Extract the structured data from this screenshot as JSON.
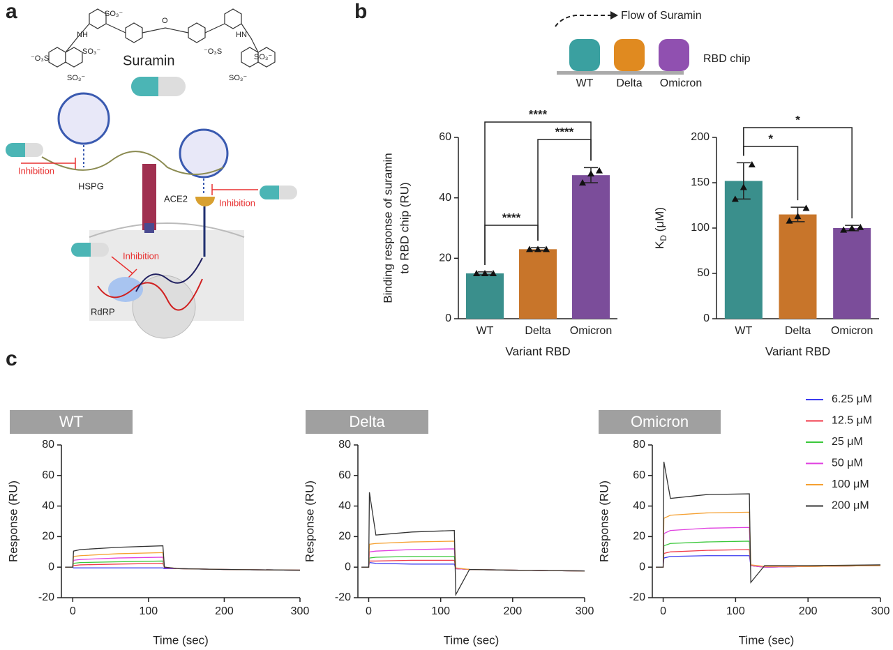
{
  "figure": {
    "panel_labels": [
      "a",
      "b",
      "c"
    ],
    "diagram": {
      "drug": "Suramin",
      "groups": [
        "NH",
        "O",
        "SO₃⁻",
        "⁻O₃S",
        "SO₃⁻",
        "HN",
        "SO₃⁻",
        "⁻O₃S",
        "SO₃⁻",
        "SO₃⁻"
      ],
      "inhibition": [
        "Inhibition",
        "Inhibition",
        "Inhibition"
      ],
      "hspg": "HSPG",
      "ace2": "ACE2",
      "rdrp": "RdRP"
    },
    "chip": {
      "flow": "Flow of Suramin",
      "chip": "RBD chip",
      "variants": [
        "WT",
        "Delta",
        "Omicron"
      ]
    }
  },
  "chart_data": [
    {
      "type": "bar",
      "ylabel": [
        "Binding response of suramin",
        "to RBD chip (RU)"
      ],
      "xlabel": "Variant RBD",
      "categories": [
        "WT",
        "Delta",
        "Omicron"
      ],
      "values": [
        15,
        23,
        47.5
      ],
      "errors": [
        0.5,
        0.5,
        2.5
      ],
      "points": [
        [
          15,
          15,
          15
        ],
        [
          23,
          23,
          23
        ],
        [
          45,
          48,
          49
        ]
      ],
      "colors": [
        "#3a8f8c",
        "#c8752a",
        "#7b4d9a"
      ],
      "ylim": [
        0,
        60
      ],
      "yticks": [
        0,
        20,
        40,
        60
      ],
      "comparisons": [
        {
          "groups": [
            0,
            1
          ],
          "label": "****"
        },
        {
          "groups": [
            1,
            2
          ],
          "label": "****"
        },
        {
          "groups": [
            0,
            2
          ],
          "label": "****"
        }
      ]
    },
    {
      "type": "bar",
      "ylabel": {
        "text": "K",
        "sub": "D",
        "unit": " (μM)"
      },
      "xlabel": "Variant RBD",
      "categories": [
        "WT",
        "Delta",
        "Omicron"
      ],
      "values": [
        152,
        115,
        100
      ],
      "errors": [
        20,
        8,
        3
      ],
      "points": [
        [
          132,
          145,
          170
        ],
        [
          108,
          113,
          122
        ],
        [
          98,
          100,
          101
        ]
      ],
      "colors": [
        "#3a8f8c",
        "#c8752a",
        "#7b4d9a"
      ],
      "ylim": [
        0,
        200
      ],
      "yticks": [
        0,
        50,
        100,
        150,
        200
      ],
      "comparisons": [
        {
          "groups": [
            0,
            1
          ],
          "label": "*"
        },
        {
          "groups": [
            0,
            2
          ],
          "label": "*"
        }
      ]
    },
    {
      "type": "line",
      "title": "WT",
      "ylabel": "Response (RU)",
      "xlabel": "Time (sec)",
      "xlim": [
        -15,
        300
      ],
      "xticks": [
        0,
        100,
        200,
        300
      ],
      "ylim": [
        -20,
        80
      ],
      "yticks": [
        -20,
        0,
        20,
        40,
        60,
        80
      ],
      "x": [
        -10,
        0,
        1,
        10,
        60,
        119,
        121,
        140,
        200,
        300
      ],
      "series": [
        {
          "color": "#3a3af0",
          "values": [
            0,
            0,
            -0.5,
            -0.5,
            -0.5,
            -0.5,
            -1,
            -1,
            -1.5,
            -2
          ]
        },
        {
          "color": "#f03a4a",
          "values": [
            0,
            0,
            1,
            1.5,
            2,
            2.5,
            -0.5,
            -1,
            -1.5,
            -2
          ]
        },
        {
          "color": "#3ac83a",
          "values": [
            0,
            0,
            2.5,
            3,
            3.5,
            4,
            -0.5,
            -1,
            -1.5,
            -2
          ]
        },
        {
          "color": "#e040e0",
          "values": [
            0,
            0,
            4.5,
            5,
            6,
            6.5,
            -0.5,
            -1,
            -1.5,
            -2
          ]
        },
        {
          "color": "#f5a030",
          "values": [
            0,
            0,
            7,
            7.5,
            8.8,
            9.5,
            0,
            -1,
            -1.5,
            -2
          ]
        },
        {
          "color": "#333333",
          "values": [
            0,
            0,
            10.5,
            11.5,
            13,
            14,
            0,
            -1,
            -1.5,
            -2
          ]
        }
      ]
    },
    {
      "type": "line",
      "title": "Delta",
      "ylabel": "Response (RU)",
      "xlabel": "Time (sec)",
      "xlim": [
        -15,
        300
      ],
      "xticks": [
        0,
        100,
        200,
        300
      ],
      "ylim": [
        -20,
        80
      ],
      "yticks": [
        -20,
        0,
        20,
        40,
        60,
        80
      ],
      "x": [
        -10,
        0,
        1,
        10,
        60,
        119,
        121,
        140,
        200,
        300
      ],
      "series": [
        {
          "color": "#3a3af0",
          "values": [
            0,
            0,
            3,
            2.5,
            2,
            2,
            -1,
            -1.5,
            -2,
            -2.5
          ]
        },
        {
          "color": "#f03a4a",
          "values": [
            0,
            0,
            4,
            4,
            4.5,
            4.5,
            -1,
            -1.5,
            -2,
            -2.5
          ]
        },
        {
          "color": "#3ac83a",
          "values": [
            0,
            0,
            6,
            6.5,
            7,
            7,
            -1,
            -1.5,
            -2,
            -2.5
          ]
        },
        {
          "color": "#e040e0",
          "values": [
            0,
            0,
            10,
            10.5,
            11.5,
            12,
            -1,
            -1.5,
            -2,
            -2.5
          ]
        },
        {
          "color": "#f5a030",
          "values": [
            0,
            0,
            15,
            15.5,
            16.5,
            17,
            -0.5,
            -1.5,
            -2,
            -2.5
          ]
        },
        {
          "color": "#333333",
          "values": [
            0,
            0,
            49,
            21,
            23,
            24,
            -18,
            -1.5,
            -2,
            -2.5
          ]
        }
      ]
    },
    {
      "type": "line",
      "title": "Omicron",
      "ylabel": "Response (RU)",
      "xlabel": "Time (sec)",
      "xlim": [
        -15,
        300
      ],
      "xticks": [
        0,
        100,
        200,
        300
      ],
      "ylim": [
        -20,
        80
      ],
      "yticks": [
        -20,
        0,
        20,
        40,
        60,
        80
      ],
      "x": [
        -10,
        0,
        1,
        10,
        60,
        119,
        121,
        140,
        200,
        300
      ],
      "series": [
        {
          "name": "6.25 μM",
          "color": "#3a3af0",
          "values": [
            0,
            0,
            6,
            7,
            7.5,
            7.5,
            1,
            0,
            0.5,
            1
          ]
        },
        {
          "name": "12.5 μM",
          "color": "#f03a4a",
          "values": [
            0,
            0,
            9,
            10,
            11,
            11.5,
            1,
            0,
            0.5,
            1
          ]
        },
        {
          "name": "25 μM",
          "color": "#3ac83a",
          "values": [
            0,
            0,
            14,
            15.5,
            16.5,
            17,
            1,
            0,
            0.5,
            1
          ]
        },
        {
          "name": "50 μM",
          "color": "#e040e0",
          "values": [
            0,
            0,
            22,
            24,
            25.5,
            26,
            1,
            0,
            0.5,
            1
          ]
        },
        {
          "name": "100 μM",
          "color": "#f5a030",
          "values": [
            0,
            0,
            32,
            34,
            35.5,
            36,
            1.5,
            0.5,
            0.5,
            1
          ]
        },
        {
          "name": "200 μM",
          "color": "#333333",
          "values": [
            0,
            0,
            69,
            45,
            47.5,
            48,
            -10,
            1,
            1,
            1.5
          ]
        }
      ]
    }
  ]
}
